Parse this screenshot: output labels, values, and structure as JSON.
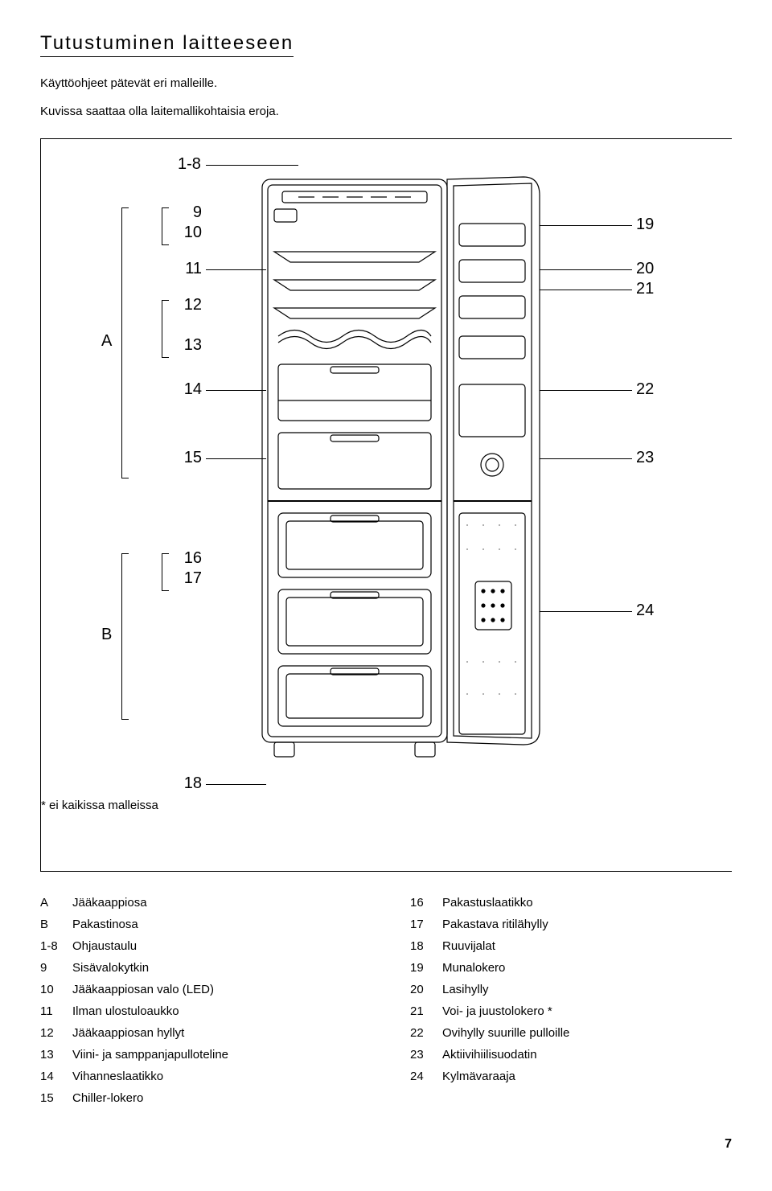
{
  "title": "Tutustuminen laitteeseen",
  "intro_line1": "Käyttöohjeet pätevät eri malleille.",
  "intro_line2": "Kuvissa saattaa olla laitemallikohtaisia eroja.",
  "label_top_range": "1-8",
  "label_A": "A",
  "label_B": "B",
  "left_numbers": {
    "n9": "9",
    "n10": "10",
    "n11": "11",
    "n12": "12",
    "n13": "13",
    "n14": "14",
    "n15": "15",
    "n16": "16",
    "n17": "17",
    "n18": "18"
  },
  "right_numbers": {
    "n19": "19",
    "n20": "20",
    "n21": "21",
    "n22": "22",
    "n23": "23",
    "n24": "24"
  },
  "footnote": "* ei kaikissa malleissa",
  "legend_left": [
    {
      "k": "A",
      "v": "Jääkaappiosa"
    },
    {
      "k": "B",
      "v": "Pakastinosa"
    },
    {
      "k": "1-8",
      "v": "Ohjaustaulu"
    },
    {
      "k": "9",
      "v": "Sisävalokytkin"
    },
    {
      "k": "10",
      "v": "Jääkaappiosan valo (LED)"
    },
    {
      "k": "11",
      "v": "Ilman ulostuloaukko"
    },
    {
      "k": "12",
      "v": "Jääkaappiosan hyllyt"
    },
    {
      "k": "13",
      "v": "Viini- ja samppanjapulloteline"
    },
    {
      "k": "14",
      "v": "Vihanneslaatikko"
    },
    {
      "k": "15",
      "v": "Chiller-lokero"
    }
  ],
  "legend_right": [
    {
      "k": "16",
      "v": "Pakastuslaatikko"
    },
    {
      "k": "17",
      "v": "Pakastava ritilähylly"
    },
    {
      "k": "18",
      "v": "Ruuvijalat"
    },
    {
      "k": "19",
      "v": "Munalokero"
    },
    {
      "k": "20",
      "v": "Lasihylly"
    },
    {
      "k": "21",
      "v": "Voi- ja juustolokero *"
    },
    {
      "k": "22",
      "v": "Ovihylly suurille pulloille"
    },
    {
      "k": "23",
      "v": "Aktiivihiilisuodatin"
    },
    {
      "k": "24",
      "v": "Kylmävaraaja"
    }
  ],
  "page_number": "7",
  "colors": {
    "line": "#000000",
    "bg": "#ffffff",
    "shade": "#eeeeee"
  }
}
